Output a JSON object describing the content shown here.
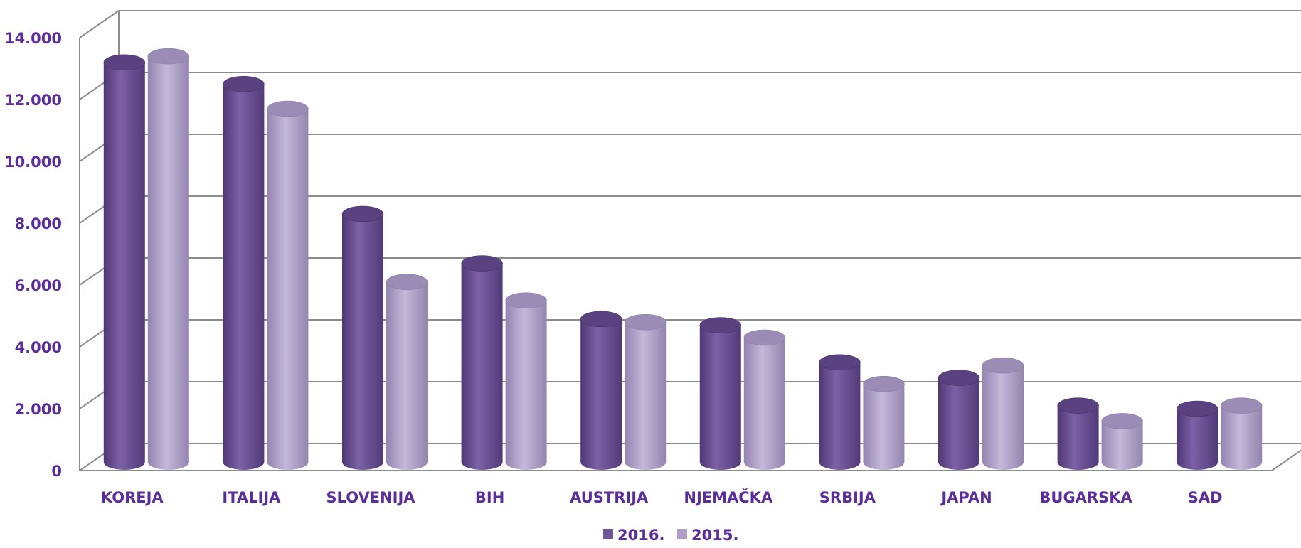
{
  "chart_data": {
    "type": "bar",
    "style": "3d-cylinder",
    "categories": [
      "KOREJA",
      "ITALIJA",
      "SLOVENIJA",
      "BIH",
      "AUSTRIJA",
      "NJEMAČKA",
      "SRBIJA",
      "JAPAN",
      "BUGARSKA",
      "SAD"
    ],
    "series": [
      {
        "name": "2016.",
        "color": "#6f5596",
        "values": [
          13200,
          12500,
          8300,
          6700,
          4900,
          4700,
          3500,
          3000,
          2100,
          2000
        ]
      },
      {
        "name": "2015.",
        "color": "#ad9fc6",
        "values": [
          13400,
          11700,
          6100,
          5500,
          4800,
          4300,
          2800,
          3400,
          1600,
          2100
        ]
      }
    ],
    "yticks": [
      "0",
      "2.000",
      "4.000",
      "6.000",
      "8.000",
      "10.000",
      "12.000",
      "14.000"
    ],
    "ylim": [
      0,
      14000
    ],
    "grid": true,
    "legend_position": "bottom"
  }
}
